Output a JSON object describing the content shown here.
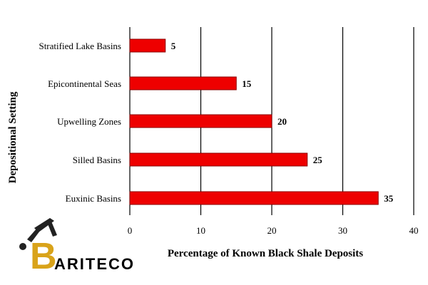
{
  "chart_data": {
    "type": "bar",
    "orientation": "horizontal",
    "categories": [
      "Stratified Lake Basins",
      "Epicontinental Seas",
      "Upwelling Zones",
      "Silled Basins",
      "Euxinic Basins"
    ],
    "values": [
      5,
      15,
      20,
      25,
      35
    ],
    "data_labels": [
      "5",
      "15",
      "20",
      "25",
      "35"
    ],
    "title": "",
    "xlabel": "Percentage of Known Black Shale Deposits",
    "ylabel": "Depositional Setting",
    "xlim": [
      0,
      40
    ],
    "xticks": [
      "0",
      "10",
      "20",
      "30",
      "40"
    ],
    "grid": "vertical gridlines at major ticks",
    "bar_color": "#ee0000",
    "bar_edge_color": "#8b0000",
    "grid_color": "#000000"
  },
  "logo": {
    "letter": "B",
    "text": "ARITECO",
    "letter_color": "#d9a31a"
  }
}
